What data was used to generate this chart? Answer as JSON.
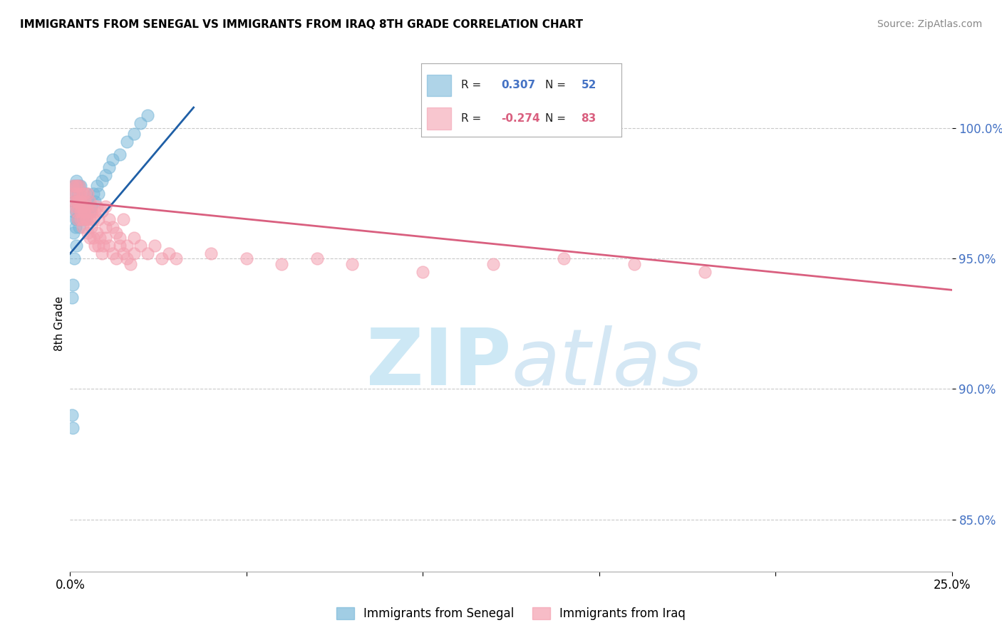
{
  "title": "IMMIGRANTS FROM SENEGAL VS IMMIGRANTS FROM IRAQ 8TH GRADE CORRELATION CHART",
  "source": "Source: ZipAtlas.com",
  "ylabel": "8th Grade",
  "xlim": [
    0.0,
    25.0
  ],
  "ylim": [
    83.0,
    102.0
  ],
  "yticks": [
    85.0,
    90.0,
    95.0,
    100.0
  ],
  "ytick_labels": [
    "85.0%",
    "90.0%",
    "95.0%",
    "100.0%"
  ],
  "blue_color": "#7ab8d9",
  "pink_color": "#f4a0b0",
  "blue_line_color": "#1f5fa6",
  "pink_line_color": "#d95f7f",
  "watermark_color": "#cde8f5",
  "blue_scatter_x": [
    0.05,
    0.08,
    0.1,
    0.12,
    0.12,
    0.15,
    0.15,
    0.18,
    0.18,
    0.2,
    0.2,
    0.22,
    0.22,
    0.25,
    0.25,
    0.28,
    0.28,
    0.3,
    0.3,
    0.32,
    0.35,
    0.38,
    0.4,
    0.42,
    0.45,
    0.48,
    0.5,
    0.55,
    0.6,
    0.65,
    0.7,
    0.75,
    0.8,
    0.9,
    1.0,
    1.1,
    1.2,
    1.4,
    1.6,
    1.8,
    2.0,
    2.2,
    0.1,
    0.15,
    0.2,
    0.25,
    0.3,
    0.35,
    0.05,
    0.08,
    0.12,
    0.18
  ],
  "blue_scatter_y": [
    89.0,
    88.5,
    96.8,
    97.2,
    97.8,
    96.5,
    97.5,
    96.8,
    98.0,
    97.2,
    97.8,
    96.5,
    97.5,
    96.2,
    97.8,
    96.8,
    97.2,
    96.5,
    97.8,
    96.8,
    97.2,
    96.8,
    97.0,
    96.5,
    97.5,
    96.8,
    97.2,
    96.8,
    97.0,
    97.5,
    97.2,
    97.8,
    97.5,
    98.0,
    98.2,
    98.5,
    98.8,
    99.0,
    99.5,
    99.8,
    100.2,
    100.5,
    96.0,
    96.2,
    96.5,
    96.8,
    97.0,
    97.2,
    93.5,
    94.0,
    95.0,
    95.5
  ],
  "pink_scatter_x": [
    0.08,
    0.1,
    0.12,
    0.15,
    0.15,
    0.18,
    0.18,
    0.2,
    0.2,
    0.22,
    0.22,
    0.25,
    0.25,
    0.28,
    0.3,
    0.3,
    0.32,
    0.35,
    0.35,
    0.38,
    0.4,
    0.4,
    0.42,
    0.45,
    0.48,
    0.5,
    0.5,
    0.55,
    0.55,
    0.6,
    0.65,
    0.7,
    0.75,
    0.8,
    0.9,
    1.0,
    1.0,
    1.1,
    1.2,
    1.3,
    1.4,
    1.5,
    1.6,
    1.8,
    2.0,
    2.2,
    2.4,
    2.6,
    2.8,
    3.0,
    4.0,
    5.0,
    6.0,
    7.0,
    8.0,
    10.0,
    12.0,
    14.0,
    16.0,
    18.0,
    0.3,
    0.35,
    0.4,
    0.45,
    0.5,
    0.55,
    0.6,
    0.65,
    0.7,
    0.75,
    0.8,
    0.85,
    0.9,
    0.95,
    1.0,
    1.1,
    1.2,
    1.3,
    1.4,
    1.5,
    1.6,
    1.7,
    1.8
  ],
  "pink_scatter_y": [
    97.8,
    97.5,
    97.2,
    97.8,
    97.0,
    97.5,
    96.8,
    97.8,
    97.2,
    96.5,
    97.2,
    97.8,
    97.0,
    97.5,
    96.8,
    97.2,
    97.0,
    96.5,
    97.5,
    97.0,
    96.8,
    97.5,
    97.2,
    96.5,
    97.0,
    96.8,
    97.5,
    96.5,
    97.2,
    96.8,
    96.5,
    96.8,
    97.0,
    96.5,
    96.8,
    96.2,
    97.0,
    96.5,
    96.2,
    96.0,
    95.8,
    96.5,
    95.5,
    95.8,
    95.5,
    95.2,
    95.5,
    95.0,
    95.2,
    95.0,
    95.2,
    95.0,
    94.8,
    95.0,
    94.8,
    94.5,
    94.8,
    95.0,
    94.8,
    94.5,
    96.5,
    96.2,
    96.8,
    96.5,
    96.0,
    95.8,
    96.2,
    95.8,
    95.5,
    96.0,
    95.5,
    95.8,
    95.2,
    95.5,
    95.8,
    95.5,
    95.2,
    95.0,
    95.5,
    95.2,
    95.0,
    94.8,
    95.2
  ],
  "blue_line_x0": 0.0,
  "blue_line_x1": 3.5,
  "blue_line_y0": 95.2,
  "blue_line_y1": 100.8,
  "pink_line_x0": 0.0,
  "pink_line_x1": 25.0,
  "pink_line_y0": 97.2,
  "pink_line_y1": 93.8
}
